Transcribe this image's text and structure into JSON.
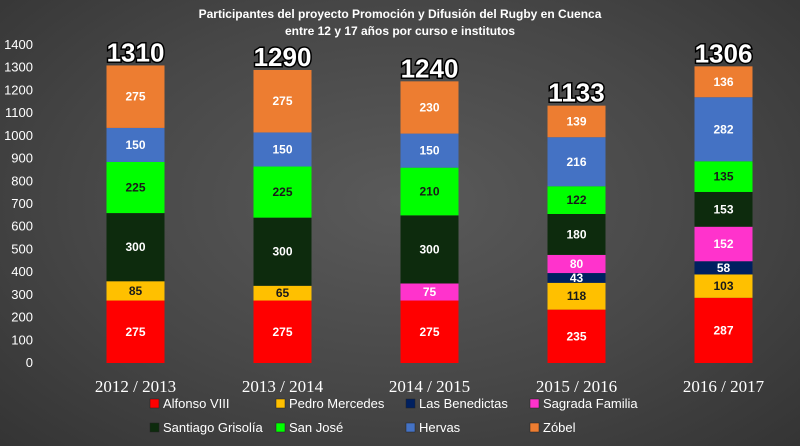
{
  "chart_data": {
    "type": "bar",
    "stacked": true,
    "title": "Participantes del proyecto Promoción y Difusión del Rugby en Cuenca",
    "subtitle": "entre 12  y 17 años por curso e institutos",
    "categories": [
      "2012 / 2013",
      "2013 / 2014",
      "2014 / 2015",
      "2015 / 2016",
      "2016 / 2017"
    ],
    "totals": [
      1310,
      1290,
      1240,
      1133,
      1306
    ],
    "ylim": [
      0,
      1400
    ],
    "yticks": [
      0,
      100,
      200,
      300,
      400,
      500,
      600,
      700,
      800,
      900,
      1000,
      1100,
      1200,
      1300,
      1400
    ],
    "grid": false,
    "legend_position": "bottom",
    "series": [
      {
        "name": "Alfonso VIII",
        "color": "#ff0000",
        "values": [
          275,
          275,
          275,
          235,
          287
        ]
      },
      {
        "name": "Pedro Mercedes",
        "color": "#ffc000",
        "values": [
          85,
          65,
          0,
          118,
          103
        ]
      },
      {
        "name": "Las Benedictas",
        "color": "#002060",
        "values": [
          0,
          0,
          0,
          43,
          58
        ]
      },
      {
        "name": "Sagrada Familia",
        "color": "#ff33cc",
        "values": [
          0,
          0,
          75,
          80,
          152
        ]
      },
      {
        "name": "Santiago Grisolía",
        "color": "#0d2b0d",
        "values": [
          300,
          300,
          300,
          180,
          153
        ]
      },
      {
        "name": "San José",
        "color": "#00ff00",
        "values": [
          225,
          225,
          210,
          122,
          135
        ]
      },
      {
        "name": "Hervas",
        "color": "#4472c4",
        "values": [
          150,
          150,
          150,
          216,
          282
        ]
      },
      {
        "name": "Zóbel",
        "color": "#ed7d31",
        "values": [
          275,
          275,
          230,
          139,
          136
        ]
      }
    ],
    "legend_order": [
      0,
      1,
      2,
      3,
      4,
      5,
      6,
      7
    ]
  }
}
